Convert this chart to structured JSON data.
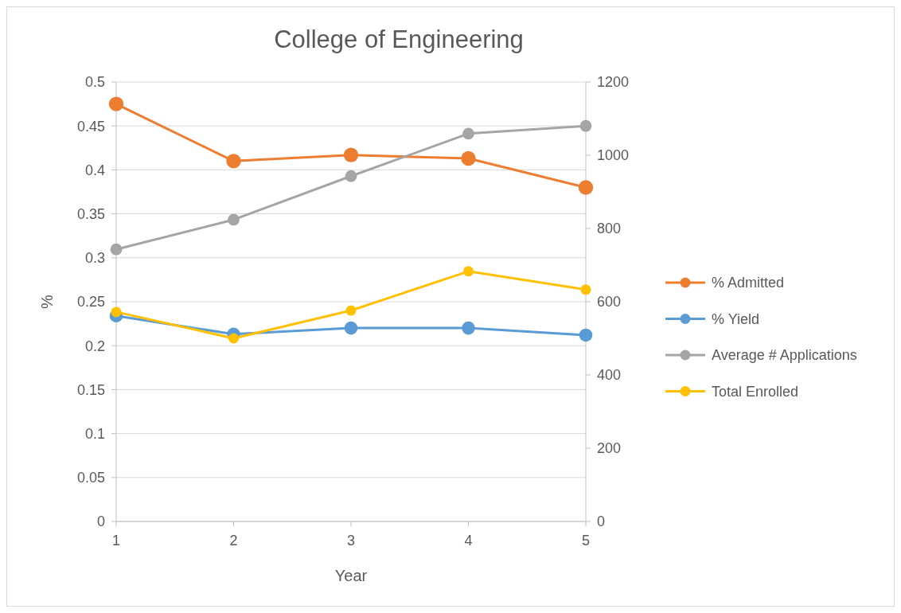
{
  "chart_data": {
    "type": "line",
    "title": "College of Engineering",
    "xlabel": "Year",
    "ylabel": "%",
    "x": [
      1,
      2,
      3,
      4,
      5
    ],
    "xlim": [
      1,
      5
    ],
    "xticks": [
      1,
      2,
      3,
      4,
      5
    ],
    "ylim": [
      0,
      0.5
    ],
    "yticks": [
      0,
      0.05,
      0.1,
      0.15,
      0.2,
      0.25,
      0.3,
      0.35,
      0.4,
      0.45,
      0.5
    ],
    "y2lim": [
      0,
      1200
    ],
    "y2ticks": [
      0,
      200,
      400,
      600,
      800,
      1000,
      1200
    ],
    "grid": "y",
    "legend": "right",
    "marker": "circle",
    "line_style": "solid",
    "series": [
      {
        "name": "% Admitted",
        "color": "#ed7d31",
        "values": [
          0.475,
          0.41,
          0.417,
          0.413,
          0.38
        ]
      },
      {
        "name": "% Yield",
        "color": "#5b9bd5",
        "values": [
          0.234,
          0.213,
          0.22,
          0.22,
          0.212
        ]
      },
      {
        "name": "Average # Applications",
        "color": "#a5a5a5",
        "axis": "y2",
        "values": [
          743,
          824,
          943,
          1059,
          1080
        ]
      },
      {
        "name": "Total Enrolled",
        "color": "#ffc000",
        "axis": "y2",
        "values": [
          572,
          500,
          576,
          683,
          633
        ]
      }
    ]
  }
}
